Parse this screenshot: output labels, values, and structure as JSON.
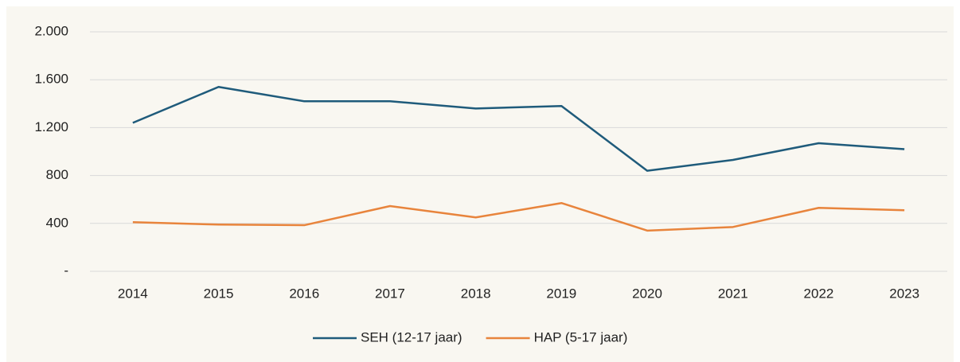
{
  "chart_data": {
    "type": "line",
    "categories": [
      "2014",
      "2015",
      "2016",
      "2017",
      "2018",
      "2019",
      "2020",
      "2021",
      "2022",
      "2023"
    ],
    "series": [
      {
        "name": "SEH (12-17 jaar)",
        "color": "#1f5b7b",
        "values": [
          1240,
          1540,
          1420,
          1420,
          1360,
          1380,
          840,
          930,
          1070,
          1020
        ]
      },
      {
        "name": "HAP (5-17 jaar)",
        "color": "#e8843c",
        "values": [
          410,
          390,
          385,
          545,
          450,
          570,
          340,
          370,
          530,
          510
        ]
      }
    ],
    "ylim": [
      0,
      2000
    ],
    "yticks": [
      {
        "value": 0,
        "label": "-"
      },
      400,
      800,
      {
        "value": 1200,
        "label": "1.200"
      },
      {
        "value": 1600,
        "label": "1.600"
      },
      {
        "value": 2000,
        "label": "2.000"
      }
    ],
    "grid": true,
    "legend": "bottom"
  }
}
